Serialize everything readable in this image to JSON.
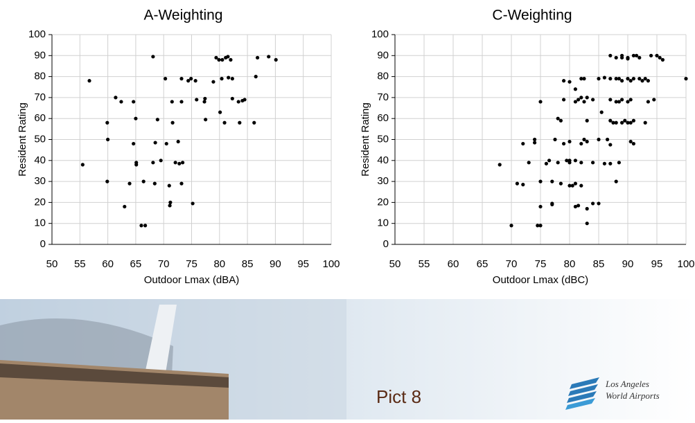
{
  "chart_data": [
    {
      "type": "scatter",
      "title": "A-Weighting",
      "xlabel": "Outdoor Lmax (dBA)",
      "ylabel": "Resident Rating",
      "color": "#000000",
      "grid": true,
      "xlim": [
        50,
        100
      ],
      "xticks": [
        50,
        55,
        60,
        65,
        70,
        75,
        80,
        85,
        90,
        95,
        100
      ],
      "ylim": [
        0,
        100
      ],
      "yticks": [
        0,
        10,
        20,
        30,
        40,
        50,
        60,
        70,
        80,
        90,
        100
      ],
      "x": [
        55.5,
        56.7,
        59.9,
        60.0,
        59.9,
        61.4,
        62.4,
        63.0,
        63.9,
        64.6,
        64.6,
        65.0,
        65.1,
        65.1,
        66.0,
        66.4,
        66.7,
        68.1,
        68.1,
        68.4,
        68.5,
        68.9,
        69.5,
        70.3,
        70.5,
        71.0,
        71.1,
        71.2,
        71.5,
        71.6,
        72.1,
        72.6,
        72.8,
        73.2,
        73.2,
        73.2,
        73.4,
        74.4,
        74.9,
        75.2,
        75.7,
        75.9,
        77.3,
        77.4,
        77.5,
        78.9,
        79.4,
        79.9,
        80.1,
        80.4,
        80.5,
        80.9,
        81.1,
        81.5,
        81.6,
        82.0,
        82.3,
        82.3,
        83.4,
        83.6,
        84.1,
        84.5,
        86.2,
        86.5,
        86.8,
        88.8,
        90.1
      ],
      "values": [
        38,
        78,
        58,
        50,
        30,
        70,
        68,
        18,
        29,
        68,
        48,
        60,
        39,
        38,
        9,
        30,
        9,
        89.5,
        39,
        29,
        48.5,
        59.5,
        40,
        79,
        48,
        28,
        18.5,
        20,
        68,
        58,
        39,
        49,
        38.5,
        79,
        68,
        29,
        39,
        78,
        79,
        19.5,
        78,
        69,
        68,
        69.5,
        59.5,
        77.5,
        89,
        88,
        63,
        79,
        88,
        58,
        89,
        89.5,
        79.5,
        88,
        79,
        69.5,
        68,
        58,
        68.5,
        69,
        58,
        80,
        89,
        89.5,
        88
      ]
    },
    {
      "type": "scatter",
      "title": "C-Weighting",
      "xlabel": "Outdoor Lmax (dBC)",
      "ylabel": "Resident Rating",
      "color": "#000000",
      "grid": true,
      "xlim": [
        50,
        100
      ],
      "xticks": [
        50,
        55,
        60,
        65,
        70,
        75,
        80,
        85,
        90,
        95,
        100
      ],
      "ylim": [
        0,
        100
      ],
      "yticks": [
        0,
        10,
        20,
        30,
        40,
        50,
        60,
        70,
        80,
        90,
        100
      ],
      "x": [
        68,
        70,
        71,
        72,
        72,
        73,
        74,
        74,
        74.5,
        75,
        75,
        75,
        75,
        76,
        76.5,
        77,
        77,
        77,
        77.5,
        78,
        78,
        78.5,
        78.5,
        79,
        79,
        79,
        79.5,
        80,
        80,
        80,
        80,
        80,
        80.5,
        81,
        81,
        81,
        81,
        81,
        81.5,
        81.5,
        82,
        82,
        82,
        82,
        82,
        82.5,
        82.5,
        82.5,
        83,
        83,
        83,
        83,
        83,
        84,
        84,
        84,
        85,
        85,
        85,
        85.5,
        86,
        86,
        86.5,
        87,
        87,
        87,
        87,
        87,
        87,
        87.5,
        88,
        88,
        88,
        88,
        88,
        88.5,
        88.5,
        88.5,
        89,
        89,
        89,
        89,
        89,
        89.5,
        90,
        90,
        90,
        90,
        90,
        90.5,
        90.5,
        90.5,
        90.5,
        91,
        91,
        91,
        91,
        91.5,
        92,
        92,
        92.5,
        93,
        93,
        93.5,
        93.5,
        94,
        94.5,
        95,
        95.5,
        96,
        100
      ],
      "values": [
        38,
        9,
        29,
        28.5,
        48,
        39,
        48.5,
        50,
        9,
        9,
        18,
        30,
        68,
        38.5,
        40,
        19.5,
        30,
        19,
        50,
        39,
        60,
        29,
        59,
        48,
        69,
        78,
        40,
        28,
        39,
        40,
        49,
        77.5,
        28,
        18,
        29,
        40,
        68,
        74,
        18.5,
        69,
        28,
        39,
        48,
        70,
        79,
        50,
        68,
        79,
        10,
        17,
        49,
        59,
        70,
        39,
        69,
        19.5,
        19.5,
        50,
        79,
        63,
        38.5,
        79.5,
        50,
        38.5,
        47.5,
        59,
        69,
        79,
        90,
        58,
        30,
        58,
        68,
        79,
        89,
        39,
        68,
        79,
        58,
        69,
        78,
        89,
        90,
        59,
        58,
        68,
        79,
        88.5,
        89,
        49,
        58,
        69,
        78,
        48,
        59,
        79,
        90,
        90,
        79,
        89,
        78,
        58,
        79,
        68,
        78,
        90,
        69,
        90,
        89,
        88,
        79
      ]
    }
  ],
  "footer": {
    "caption": "Pict 8",
    "logo": [
      "Los Angeles",
      "World Airports"
    ]
  }
}
